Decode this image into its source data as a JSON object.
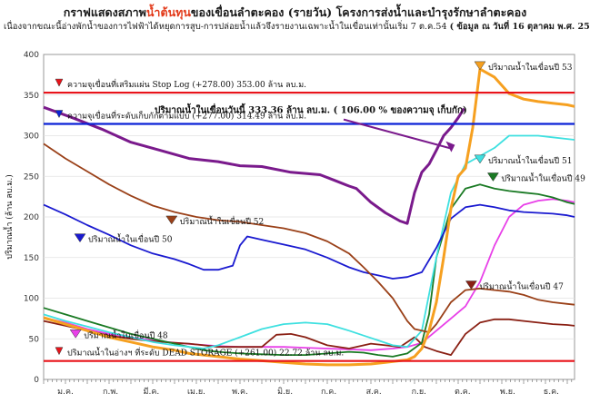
{
  "title_a": "กราฟแสดงสภาพ",
  "title_hl": "น้ำต้นทุน",
  "title_b": "ของเขื่อนลำตะคอง (รายวัน)   โครงการส่งน้ำและบำรุงรักษาลำตะคอง",
  "subtitle": "เนื่องจากขณะนี้อ่างพักน้ำของการไฟฟ้าได้หยุดการสูบ-การปล่อยน้ำแล้วจึงรายงานเฉพาะน้ำในเขื่อนเท่านั้นเริ่ม 7 ต.ค.54",
  "subtitle_date": "( ข้อมูล ณ วันที่  16  ตุลาคม  พ.ศ. 2554)",
  "today_label": "ปริมาณน้ำในเขื่อนวันนี้   333.36  ล้าน  ลบ.ม.  ( 106.00 % ของความจุ เก็บกัก)",
  "colors": {
    "stop_log": "#e8131a",
    "capacity": "#0a22d6",
    "dead": "#e8131a",
    "y53": "#f6a020",
    "y54": "#7a1a8c",
    "y51": "#3fe0e0",
    "y49": "#1a7a24",
    "y52": "#9a4018",
    "y50": "#1a1ad0",
    "y47": "#8a2014",
    "y48": "#e840e8",
    "arrow": "#7a1a8c"
  },
  "chart_data": {
    "type": "line",
    "ylabel": "ปริมาณน้ำ (ล้าน ลบ.ม.)",
    "ylim": [
      0,
      400
    ],
    "yticks": [
      0,
      50,
      100,
      150,
      200,
      250,
      300,
      350,
      400
    ],
    "xlim": [
      0,
      365
    ],
    "xticks": [
      {
        "label": "ม.ค.",
        "day": 15
      },
      {
        "label": "ก.พ.",
        "day": 46
      },
      {
        "label": "มี.ค.",
        "day": 74
      },
      {
        "label": "เม.ย.",
        "day": 105
      },
      {
        "label": "พ.ค.",
        "day": 135
      },
      {
        "label": "มิ.ย.",
        "day": 166
      },
      {
        "label": "ก.ค.",
        "day": 196
      },
      {
        "label": "ส.ค.",
        "day": 227
      },
      {
        "label": "ก.ย.",
        "day": 258
      },
      {
        "label": "ต.ค.",
        "day": 288
      },
      {
        "label": "พ.ย.",
        "day": 319
      },
      {
        "label": "ธ.ค.",
        "day": 349
      }
    ],
    "hlines": [
      {
        "name": "ความจุเขื่อนที่เสริมแผ่น Stop Log",
        "value": 353.0,
        "text": "ความจุเขื่อนที่เสริมแผ่น Stop Log  (+278.00)  353.00  ล้าน ลบ.ม.",
        "color_key": "stop_log"
      },
      {
        "name": "ความจุเขื่อนที่ระดับเก็บกักตามแบบ",
        "value": 314.49,
        "text": "ความจุเขื่อนที่ระดับเก็บกักตามแบบ   (+277.00)  314.49  ล้าน ลบ.ม.",
        "color_key": "capacity"
      },
      {
        "name": "ปริมาณน้ำในอ่างฯ ที่ระดับ DEAD STORAGE",
        "value": 22.72,
        "text": "ปริมาณน้ำในอ่างฯ ที่ระดับ  DEAD STORAGE  (+261.00)  22.72  ล้าน ลบ.ม.",
        "color_key": "dead"
      }
    ],
    "series": [
      {
        "name": "ปริมาณน้ำในเขื่อนปี 54",
        "color_key": "y54",
        "x": [
          0,
          20,
          40,
          60,
          80,
          100,
          120,
          135,
          150,
          170,
          190,
          200,
          210,
          215,
          225,
          235,
          240,
          245,
          250,
          255,
          260,
          265,
          270,
          275,
          280,
          285,
          289
        ],
        "values": [
          335,
          322,
          308,
          292,
          282,
          272,
          268,
          263,
          262,
          255,
          252,
          245,
          238,
          235,
          218,
          205,
          200,
          195,
          192,
          230,
          255,
          265,
          282,
          300,
          310,
          322,
          333.36
        ]
      },
      {
        "name": "ปริมาณน้ำในเขื่อนปี 53",
        "color_key": "y53",
        "x": [
          0,
          15,
          30,
          45,
          60,
          75,
          90,
          100,
          110,
          120,
          135,
          150,
          165,
          180,
          195,
          210,
          225,
          235,
          245,
          250,
          255,
          260,
          265,
          270,
          275,
          280,
          285,
          290,
          295,
          300,
          310,
          320,
          330,
          340,
          350,
          360,
          365
        ],
        "values": [
          76,
          68,
          60,
          52,
          46,
          40,
          36,
          32,
          30,
          28,
          25,
          23,
          21,
          19,
          18,
          18,
          19,
          21,
          23,
          24,
          28,
          38,
          60,
          95,
          150,
          210,
          250,
          260,
          310,
          382,
          372,
          352,
          345,
          342,
          340,
          338,
          336
        ]
      },
      {
        "name": "ปริมาณน้ำในเขื่อนปี 51",
        "color_key": "y51",
        "x": [
          0,
          15,
          30,
          45,
          60,
          75,
          90,
          100,
          110,
          120,
          135,
          150,
          165,
          180,
          195,
          210,
          220,
          230,
          240,
          250,
          260,
          270,
          280,
          290,
          300,
          310,
          320,
          330,
          340,
          350,
          360,
          365
        ],
        "values": [
          80,
          72,
          65,
          58,
          52,
          46,
          42,
          40,
          38,
          42,
          52,
          62,
          68,
          70,
          68,
          60,
          54,
          48,
          42,
          40,
          60,
          150,
          230,
          265,
          275,
          285,
          300,
          300,
          300,
          298,
          296,
          295
        ]
      },
      {
        "name": "ปริมาณน้ำในเขื่อนปี 49",
        "color_key": "y49",
        "x": [
          0,
          15,
          30,
          45,
          60,
          75,
          90,
          100,
          110,
          120,
          135,
          150,
          165,
          180,
          195,
          210,
          220,
          230,
          240,
          250,
          260,
          265,
          270,
          280,
          290,
          300,
          310,
          320,
          330,
          340,
          350,
          360,
          365
        ],
        "values": [
          88,
          80,
          72,
          64,
          56,
          50,
          44,
          40,
          36,
          34,
          32,
          31,
          30,
          30,
          32,
          34,
          33,
          30,
          28,
          32,
          45,
          80,
          150,
          210,
          235,
          240,
          235,
          232,
          230,
          228,
          224,
          218,
          216
        ]
      },
      {
        "name": "ปริมาณน้ำในเขื่อนปี 52",
        "color_key": "y52",
        "x": [
          0,
          15,
          30,
          45,
          60,
          75,
          90,
          105,
          120,
          135,
          150,
          165,
          180,
          195,
          210,
          220,
          230,
          240,
          250,
          255,
          260,
          265,
          270,
          280,
          290,
          300,
          310,
          320,
          330,
          340,
          350,
          360,
          365
        ],
        "values": [
          290,
          272,
          256,
          240,
          226,
          214,
          206,
          200,
          196,
          194,
          190,
          186,
          180,
          170,
          155,
          138,
          120,
          100,
          72,
          62,
          60,
          58,
          68,
          95,
          110,
          112,
          110,
          108,
          104,
          98,
          95,
          93,
          92
        ]
      },
      {
        "name": "ปริมาณน้ำในเขื่อนปี 50",
        "color_key": "y50",
        "x": [
          0,
          15,
          30,
          45,
          60,
          75,
          90,
          100,
          110,
          120,
          130,
          135,
          140,
          150,
          165,
          180,
          195,
          210,
          220,
          230,
          240,
          250,
          260,
          270,
          280,
          290,
          300,
          310,
          320,
          330,
          340,
          350,
          360,
          365
        ],
        "values": [
          215,
          203,
          190,
          178,
          165,
          155,
          148,
          142,
          135,
          135,
          140,
          165,
          176,
          172,
          166,
          160,
          150,
          138,
          132,
          128,
          124,
          126,
          132,
          162,
          198,
          212,
          215,
          212,
          208,
          206,
          205,
          204,
          202,
          200
        ]
      },
      {
        "name": "ปริมาณน้ำในเขื่อนปี 47",
        "color_key": "y47",
        "x": [
          0,
          15,
          30,
          45,
          60,
          75,
          90,
          100,
          110,
          120,
          135,
          150,
          160,
          170,
          180,
          195,
          210,
          225,
          235,
          245,
          255,
          262,
          270,
          280,
          290,
          300,
          310,
          320,
          330,
          340,
          350,
          360,
          365
        ],
        "values": [
          72,
          66,
          60,
          54,
          50,
          47,
          45,
          44,
          42,
          40,
          40,
          40,
          55,
          56,
          52,
          42,
          38,
          44,
          42,
          40,
          52,
          40,
          35,
          30,
          56,
          70,
          74,
          74,
          72,
          70,
          68,
          67,
          66
        ]
      },
      {
        "name": "ปริมาณน้ำในเขื่อนปี 48",
        "color_key": "y48",
        "x": [
          0,
          15,
          30,
          45,
          60,
          75,
          90,
          105,
          120,
          135,
          150,
          165,
          180,
          195,
          210,
          225,
          240,
          250,
          260,
          270,
          280,
          290,
          300,
          310,
          320,
          330,
          340,
          350,
          360,
          365
        ],
        "values": [
          76,
          70,
          62,
          56,
          52,
          48,
          45,
          43,
          41,
          40,
          40,
          40,
          39,
          38,
          37,
          36,
          38,
          40,
          45,
          60,
          75,
          90,
          120,
          165,
          200,
          215,
          220,
          222,
          220,
          218
        ]
      }
    ],
    "annotations": [
      {
        "text": "ปริมาณน้ำในเขื่อนปี 53",
        "color_key": "y53",
        "day": 300,
        "value": 380
      },
      {
        "text": "ปริมาณน้ำในเขื่อนปี 51",
        "color_key": "y51",
        "day": 300,
        "value": 265
      },
      {
        "text": "ปริมาณน้ำในเขื่อนปี 49",
        "color_key": "y49",
        "day": 309,
        "value": 243
      },
      {
        "text": "ปริมาณน้ำในเขื่อนปี 52",
        "color_key": "y52",
        "day": 88,
        "value": 190
      },
      {
        "text": "ปริมาณน้ำในเขื่อนปี 50",
        "color_key": "y50",
        "day": 25,
        "value": 168
      },
      {
        "text": "ปริมาณน้ำในเขื่อนปี 47",
        "color_key": "y47",
        "day": 294,
        "value": 110
      },
      {
        "text": "ปริมาณน้ำในเขื่อนปี 48",
        "color_key": "y48",
        "day": 22,
        "value": 50
      }
    ]
  }
}
